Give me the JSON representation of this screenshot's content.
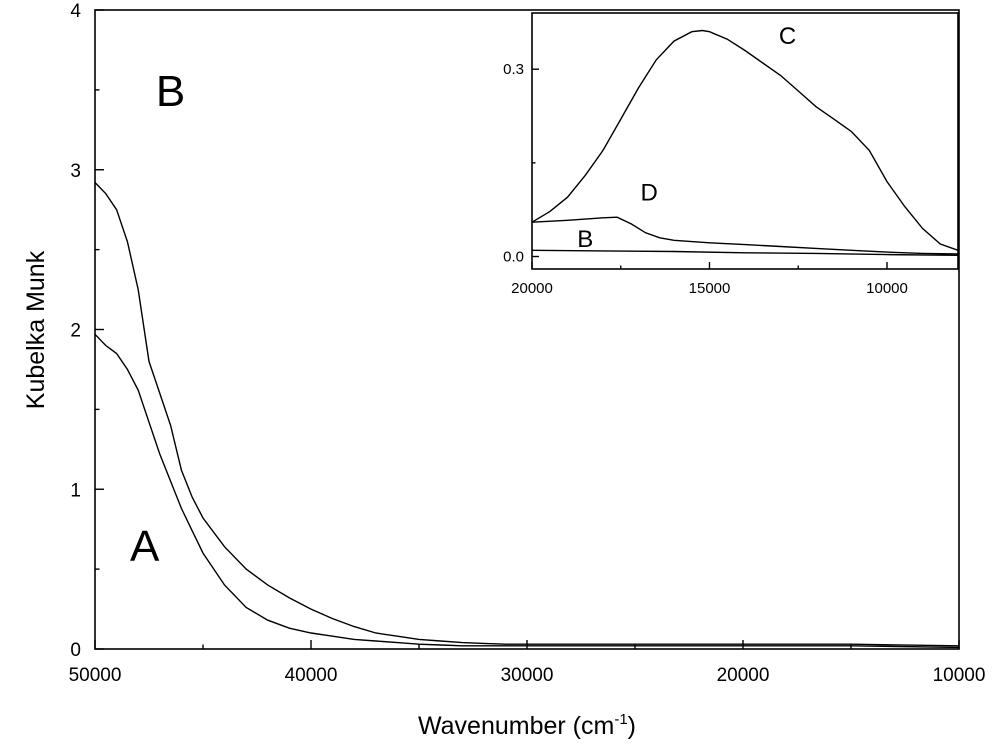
{
  "chart_data": [
    {
      "type": "line",
      "xlabel": "Wavenumber (cm",
      "xlabel_sup": "-1",
      "xlabel_end": ")",
      "ylabel": "Kubelka Munk",
      "xlim": [
        50000,
        10000
      ],
      "ylim": [
        0,
        4
      ],
      "xticks": [
        50000,
        40000,
        30000,
        20000,
        10000
      ],
      "xtick_labels": [
        "50000",
        "40000",
        "30000",
        "20000",
        "10000"
      ],
      "yticks": [
        0,
        1,
        2,
        3,
        4
      ],
      "ytick_labels": [
        "0",
        "1",
        "2",
        "3",
        "4"
      ],
      "grid": false,
      "series": [
        {
          "name": "A",
          "x": [
            50000,
            49500,
            49000,
            48500,
            48000,
            47500,
            47000,
            46500,
            46000,
            45500,
            45000,
            44000,
            43000,
            42000,
            41000,
            40000,
            39000,
            38000,
            37000,
            36000,
            35000,
            34000,
            33000,
            32000,
            31000,
            30000,
            25000,
            20000,
            15000,
            10000
          ],
          "y": [
            1.97,
            1.9,
            1.85,
            1.75,
            1.62,
            1.42,
            1.22,
            1.05,
            0.88,
            0.74,
            0.6,
            0.4,
            0.26,
            0.18,
            0.13,
            0.1,
            0.08,
            0.06,
            0.05,
            0.04,
            0.03,
            0.025,
            0.02,
            0.02,
            0.02,
            0.02,
            0.02,
            0.02,
            0.02,
            0.01
          ]
        },
        {
          "name": "B",
          "x": [
            50000,
            49500,
            49000,
            48500,
            48000,
            47500,
            47000,
            46500,
            46000,
            45500,
            45000,
            44000,
            43000,
            42000,
            41000,
            40000,
            39000,
            38000,
            37000,
            36000,
            35000,
            34000,
            33000,
            32000,
            31000,
            30000,
            25000,
            20000,
            15000,
            10000
          ],
          "y": [
            2.92,
            2.85,
            2.75,
            2.55,
            2.25,
            1.8,
            1.6,
            1.4,
            1.12,
            0.95,
            0.82,
            0.64,
            0.5,
            0.4,
            0.32,
            0.25,
            0.19,
            0.14,
            0.1,
            0.08,
            0.06,
            0.05,
            0.04,
            0.035,
            0.03,
            0.03,
            0.03,
            0.03,
            0.03,
            0.02
          ]
        }
      ],
      "annotations": [
        {
          "text": "A",
          "x": 47700,
          "y": 0.55
        },
        {
          "text": "B",
          "x": 46500,
          "y": 3.4
        }
      ]
    },
    {
      "type": "line",
      "xlim": [
        20000,
        8000
      ],
      "ylim": [
        -0.02,
        0.39
      ],
      "xticks": [
        20000,
        15000,
        10000
      ],
      "xtick_labels": [
        "20000",
        "15000",
        "10000"
      ],
      "yticks": [
        0.0,
        0.3
      ],
      "ytick_labels": [
        "0.0",
        "0.3"
      ],
      "grid": false,
      "series": [
        {
          "name": "C",
          "x": [
            20000,
            19500,
            19000,
            18500,
            18000,
            17500,
            17000,
            16500,
            16000,
            15500,
            15200,
            15000,
            14500,
            14000,
            13500,
            13000,
            12500,
            12000,
            11500,
            11000,
            10500,
            10000,
            9500,
            9000,
            8500,
            8000
          ],
          "y": [
            0.055,
            0.072,
            0.095,
            0.13,
            0.17,
            0.22,
            0.27,
            0.315,
            0.345,
            0.36,
            0.362,
            0.36,
            0.348,
            0.33,
            0.31,
            0.29,
            0.265,
            0.24,
            0.22,
            0.2,
            0.17,
            0.12,
            0.08,
            0.045,
            0.02,
            0.01
          ]
        },
        {
          "name": "D",
          "x": [
            20000,
            19000,
            18000,
            17600,
            17200,
            16800,
            16400,
            16000,
            15000,
            14000,
            13000,
            12000,
            11000,
            10000,
            9000,
            8000
          ],
          "y": [
            0.055,
            0.058,
            0.062,
            0.063,
            0.052,
            0.038,
            0.03,
            0.026,
            0.022,
            0.019,
            0.016,
            0.013,
            0.01,
            0.007,
            0.005,
            0.004
          ]
        },
        {
          "name": "B",
          "x": [
            20000,
            18000,
            16000,
            14000,
            12000,
            10000,
            8000
          ],
          "y": [
            0.01,
            0.009,
            0.008,
            0.006,
            0.005,
            0.003,
            0.002
          ]
        }
      ],
      "annotations": [
        {
          "text": "C",
          "x": 12800,
          "y": 0.34
        },
        {
          "text": "D",
          "x": 16700,
          "y": 0.09
        },
        {
          "text": "B",
          "x": 18500,
          "y": 0.015
        }
      ]
    }
  ]
}
